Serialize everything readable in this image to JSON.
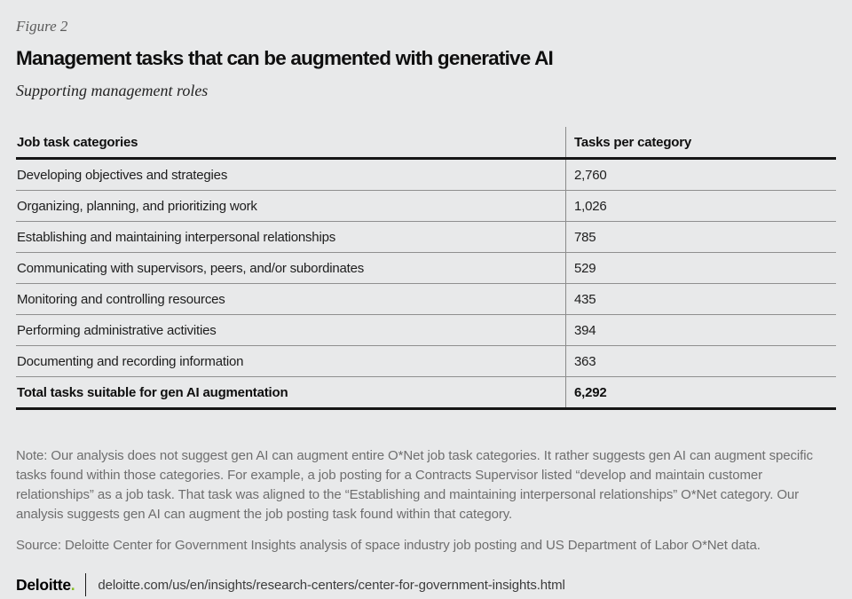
{
  "figure": {
    "label": "Figure 2",
    "title": "Management tasks that can be augmented with generative AI",
    "subtitle": "Supporting management roles"
  },
  "table": {
    "header": {
      "category": "Job task categories",
      "tasks": "Tasks per category"
    },
    "rows": [
      {
        "category": "Developing objectives and strategies",
        "tasks": "2,760"
      },
      {
        "category": "Organizing, planning, and prioritizing work",
        "tasks": "1,026"
      },
      {
        "category": "Establishing and maintaining interpersonal relationships",
        "tasks": "785"
      },
      {
        "category": "Communicating with supervisors, peers, and/or subordinates",
        "tasks": "529"
      },
      {
        "category": "Monitoring and controlling resources",
        "tasks": "435"
      },
      {
        "category": "Performing administrative activities",
        "tasks": "394"
      },
      {
        "category": "Documenting and recording information",
        "tasks": "363"
      }
    ],
    "total": {
      "category": "Total tasks suitable for gen AI augmentation",
      "tasks": "6,292"
    }
  },
  "note": "Note: Our analysis does not suggest gen AI can augment entire O*Net job task categories. It rather suggests gen AI can augment specific tasks found within those categories. For example, a job posting for a Contracts Supervisor listed “develop and maintain customer relationships” as a job task. That task was aligned to the “Establishing and maintaining interpersonal relationships” O*Net category. Our analysis suggests gen AI can augment the job posting task found within that category.",
  "source": "Source: Deloitte Center for Government Insights analysis of space industry job posting and US Department of Labor O*Net data.",
  "footer": {
    "brand": "Deloitte",
    "brand_dot": ".",
    "url": "deloitte.com/us/en/insights/research-centers/center-for-government-insights.html"
  },
  "colors": {
    "background": "#e8e9ea",
    "brand_green": "#86bc25",
    "rule_heavy": "#161616",
    "rule_light": "#8f8f8f",
    "muted_text": "#6e6e6e"
  },
  "chart_data": {
    "type": "table",
    "title": "Management tasks that can be augmented with generative AI",
    "subtitle": "Supporting management roles",
    "columns": [
      "Job task categories",
      "Tasks per category"
    ],
    "rows": [
      [
        "Developing objectives and strategies",
        2760
      ],
      [
        "Organizing, planning, and prioritizing work",
        1026
      ],
      [
        "Establishing and maintaining interpersonal relationships",
        785
      ],
      [
        "Communicating with supervisors, peers, and/or subordinates",
        529
      ],
      [
        "Monitoring and controlling resources",
        435
      ],
      [
        "Performing administrative activities",
        394
      ],
      [
        "Documenting and recording information",
        363
      ]
    ],
    "total_row": [
      "Total tasks suitable for gen AI augmentation",
      6292
    ]
  }
}
